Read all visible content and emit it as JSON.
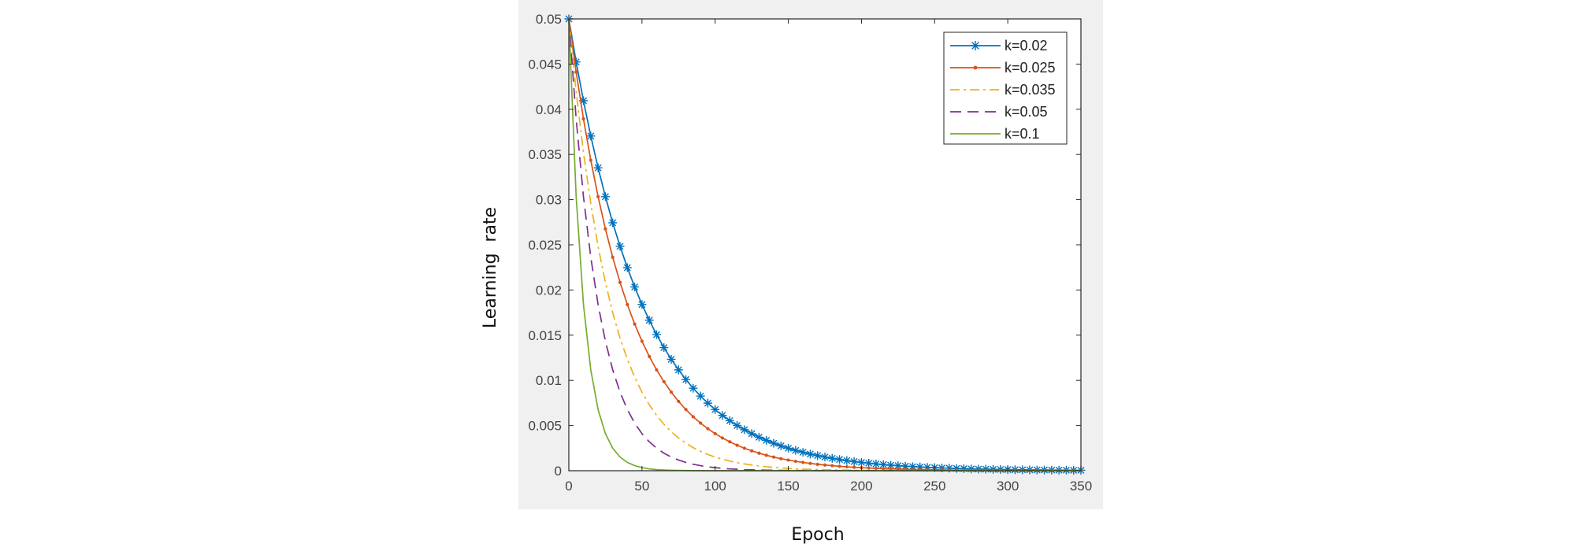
{
  "chart_data": {
    "type": "line",
    "title": "",
    "xlabel": "Epoch",
    "ylabel": "Learning  rate",
    "xlim": [
      0,
      350
    ],
    "ylim": [
      0,
      0.05
    ],
    "xticks": [
      0,
      50,
      100,
      150,
      200,
      250,
      300,
      350
    ],
    "xtick_labels": [
      "0",
      "50",
      "100",
      "150",
      "200",
      "250",
      "300",
      "350"
    ],
    "yticks": [
      0,
      0.005,
      0.01,
      0.015,
      0.02,
      0.025,
      0.03,
      0.035,
      0.04,
      0.045,
      0.05
    ],
    "ytick_labels": [
      "0",
      "0.005",
      "0.01",
      "0.015",
      "0.02",
      "0.025",
      "0.03",
      "0.035",
      "0.04",
      "0.045",
      "0.05"
    ],
    "grid": false,
    "legend_position": "top-right",
    "function": "y = 0.05 * exp(-k * x)",
    "x": [
      0,
      5,
      10,
      15,
      20,
      25,
      30,
      35,
      40,
      45,
      50,
      55,
      60,
      65,
      70,
      75,
      80,
      85,
      90,
      95,
      100,
      105,
      110,
      115,
      120,
      125,
      130,
      135,
      140,
      145,
      150,
      155,
      160,
      165,
      170,
      175,
      180,
      185,
      190,
      195,
      200,
      205,
      210,
      215,
      220,
      225,
      230,
      235,
      240,
      245,
      250,
      255,
      260,
      265,
      270,
      275,
      280,
      285,
      290,
      295,
      300,
      305,
      310,
      315,
      320,
      325,
      330,
      335,
      340,
      345,
      350
    ],
    "series": [
      {
        "name": "k=0.02",
        "color": "#0072BD",
        "style": "solid",
        "marker": "asterisk",
        "values": [
          0.05,
          0.04524,
          0.04094,
          0.03704,
          0.03352,
          0.03033,
          0.02744,
          0.02483,
          0.02247,
          0.02033,
          0.01839,
          0.01665,
          0.01506,
          0.01363,
          0.01233,
          0.01116,
          0.01009,
          0.00913,
          0.00826,
          0.00748,
          0.00677,
          0.00612,
          0.00554,
          0.00501,
          0.00454,
          0.0041,
          0.00371,
          0.00336,
          0.00304,
          0.00275,
          0.00249,
          0.00225,
          0.00204,
          0.00184,
          0.00167,
          0.00151,
          0.00137,
          0.00124,
          0.00112,
          0.00101,
          0.00092,
          0.00083,
          0.00075,
          0.00068,
          0.00061,
          0.00056,
          0.0005,
          0.00045,
          0.00041,
          0.00037,
          0.00034,
          0.0003,
          0.00028,
          0.00025,
          0.00023,
          0.0002,
          0.00018,
          0.00017,
          0.00015,
          0.00014,
          0.00012,
          0.00011,
          0.0001,
          9e-05,
          8e-05,
          8e-05,
          7e-05,
          6e-05,
          6e-05,
          5e-05,
          5e-05
        ]
      },
      {
        "name": "k=0.025",
        "color": "#D95319",
        "style": "solid",
        "marker": "dot",
        "values": [
          0.05,
          0.04412,
          0.03894,
          0.03436,
          0.03033,
          0.02676,
          0.02362,
          0.02084,
          0.01839,
          0.01623,
          0.01433,
          0.01264,
          0.01116,
          0.00985,
          0.00869,
          0.00767,
          0.00677,
          0.00597,
          0.00527,
          0.00465,
          0.0041,
          0.00362,
          0.0032,
          0.00282,
          0.00249,
          0.0022,
          0.00194,
          0.00171,
          0.00151,
          0.00133,
          0.00118,
          0.00104,
          0.00092,
          0.00081,
          0.00071,
          0.00063,
          0.00056,
          0.00049,
          0.00043,
          0.00038,
          0.00034,
          0.0003,
          0.00026,
          0.00023,
          0.0002,
          0.00018,
          0.00016,
          0.00014,
          0.00012,
          0.00011,
          0.0001,
          9e-05,
          8e-05,
          7e-05,
          6e-05,
          5e-05,
          5e-05,
          4e-05,
          4e-05,
          3e-05,
          3e-05,
          2e-05,
          2e-05,
          2e-05,
          2e-05,
          1e-05,
          1e-05,
          1e-05,
          1e-05,
          1e-05,
          1e-05
        ]
      },
      {
        "name": "k=0.035",
        "color": "#EDB120",
        "style": "dashdot",
        "marker": "none",
        "values": [
          0.05,
          0.04197,
          0.03523,
          0.02958,
          0.02483,
          0.02084,
          0.01749,
          0.01469,
          0.01233,
          0.01035,
          0.00869,
          0.00729,
          0.00612,
          0.00514,
          0.00431,
          0.00362,
          0.00304,
          0.00255,
          0.00214,
          0.0018,
          0.00151,
          0.00127,
          0.00106,
          0.00089,
          0.00075,
          0.00063,
          0.00053,
          0.00044,
          0.00037,
          0.00031,
          0.00026,
          0.00022,
          0.00018,
          0.00015,
          0.00013,
          0.00011,
          9e-05,
          8e-05,
          7e-05,
          5e-05,
          5e-05,
          4e-05,
          3e-05,
          3e-05,
          2e-05,
          2e-05,
          2e-05,
          1e-05,
          1e-05,
          1e-05,
          1e-05,
          1e-05,
          1e-05,
          0.0,
          0.0,
          0.0,
          0.0,
          0.0,
          0.0,
          0.0,
          0.0,
          0.0,
          0.0,
          0.0,
          0.0,
          0.0,
          0.0,
          0.0,
          0.0,
          0.0,
          0.0
        ]
      },
      {
        "name": "k=0.05",
        "color": "#7E2F8E",
        "style": "dashed",
        "marker": "none",
        "values": [
          0.05,
          0.03894,
          0.03033,
          0.02362,
          0.01839,
          0.01433,
          0.01116,
          0.00869,
          0.00677,
          0.00527,
          0.0041,
          0.0032,
          0.00249,
          0.00194,
          0.00151,
          0.00118,
          0.00092,
          0.00071,
          0.00056,
          0.00043,
          0.00034,
          0.00026,
          0.0002,
          0.00016,
          0.00012,
          0.0001,
          8e-05,
          6e-05,
          5e-05,
          4e-05,
          3e-05,
          2e-05,
          2e-05,
          1e-05,
          1e-05,
          1e-05,
          1e-05,
          0.0,
          0.0,
          0.0,
          0.0,
          0.0,
          0.0,
          0.0,
          0.0,
          0.0,
          0.0,
          0.0,
          0.0,
          0.0,
          0.0,
          0.0,
          0.0,
          0.0,
          0.0,
          0.0,
          0.0,
          0.0,
          0.0,
          0.0,
          0.0,
          0.0,
          0.0,
          0.0,
          0.0,
          0.0,
          0.0,
          0.0,
          0.0,
          0.0,
          0.0
        ]
      },
      {
        "name": "k=0.1",
        "color": "#77AC30",
        "style": "solid",
        "marker": "none",
        "values": [
          0.05,
          0.03033,
          0.01839,
          0.01116,
          0.00677,
          0.0041,
          0.00249,
          0.00151,
          0.00092,
          0.00056,
          0.00034,
          0.0002,
          0.00012,
          8e-05,
          5e-05,
          3e-05,
          2e-05,
          1e-05,
          1e-05,
          0.0,
          0.0,
          0.0,
          0.0,
          0.0,
          0.0,
          0.0,
          0.0,
          0.0,
          0.0,
          0.0,
          0.0,
          0.0,
          0.0,
          0.0,
          0.0,
          0.0,
          0.0,
          0.0,
          0.0,
          0.0,
          0.0,
          0.0,
          0.0,
          0.0,
          0.0,
          0.0,
          0.0,
          0.0,
          0.0,
          0.0,
          0.0,
          0.0,
          0.0,
          0.0,
          0.0,
          0.0,
          0.0,
          0.0,
          0.0,
          0.0,
          0.0,
          0.0,
          0.0,
          0.0,
          0.0,
          0.0,
          0.0,
          0.0,
          0.0,
          0.0,
          0.0
        ]
      }
    ]
  },
  "colors": {
    "figure_background": "#F0F0F0",
    "axes_background": "#FFFFFF",
    "axis_line": "#262626"
  }
}
